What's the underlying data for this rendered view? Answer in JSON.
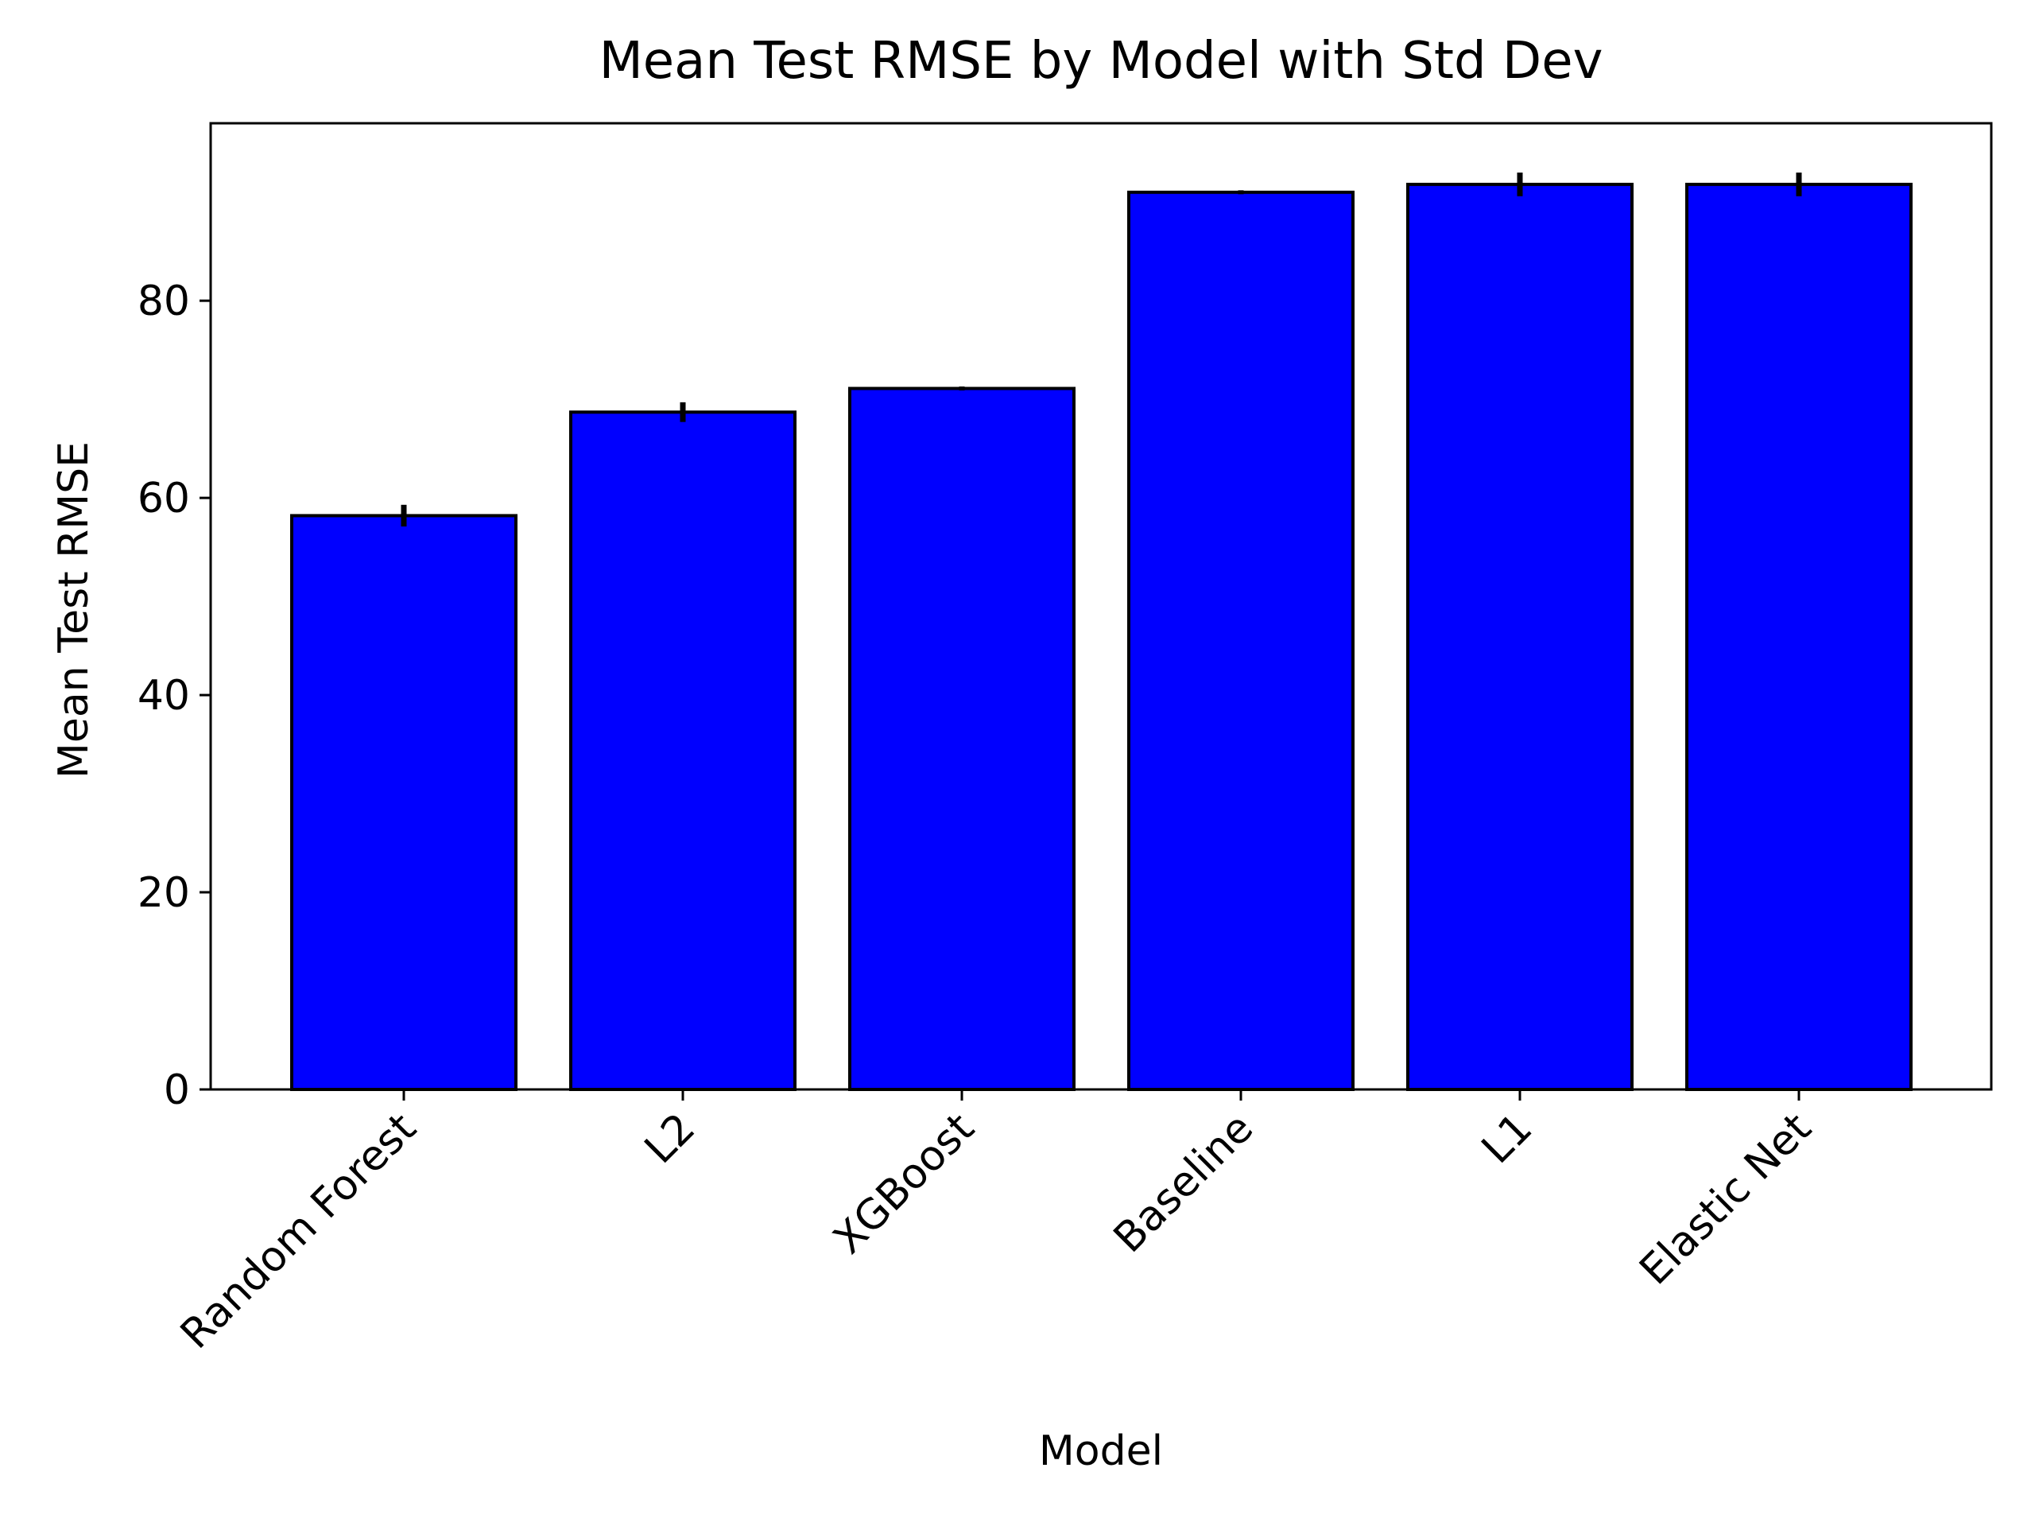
{
  "chart_data": {
    "type": "bar",
    "title": "Mean Test RMSE by Model with Std Dev",
    "xlabel": "Model",
    "ylabel": "Mean Test RMSE",
    "categories": [
      "Random Forest",
      "L2",
      "XGBoost",
      "Baseline",
      "L1",
      "Elastic Net"
    ],
    "series": [
      {
        "values": [
          58.2,
          68.7,
          71.1,
          91.0,
          91.8,
          91.8
        ],
        "std": [
          1.1,
          1.0,
          0.2,
          0.2,
          1.2,
          1.2
        ]
      }
    ],
    "ylim": [
      0,
      98
    ],
    "yticks": [
      0,
      20,
      40,
      60,
      80
    ],
    "grid": false,
    "bar_color": "#0000ff",
    "edge_color": "#000000",
    "error_bar_color": "#000000"
  }
}
